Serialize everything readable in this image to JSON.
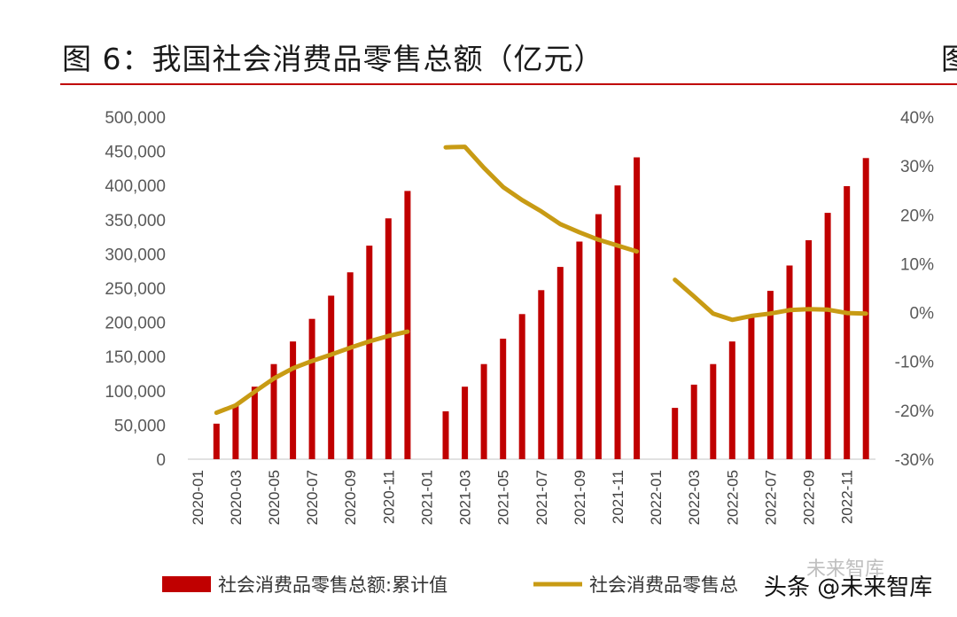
{
  "title": "图 6：我国社会消费品零售总额（亿元）",
  "title_next_figure": "图",
  "watermark": "头条 @未来智库",
  "watermark_faint": "未来智库",
  "colors": {
    "bar": "#c00000",
    "line": "#c89b14",
    "axis": "#d9d9d9",
    "title_rule": "#c00000"
  },
  "chart_data": {
    "type": "bar",
    "x": [
      "2020-01",
      "2020-02",
      "2020-03",
      "2020-04",
      "2020-05",
      "2020-06",
      "2020-07",
      "2020-08",
      "2020-09",
      "2020-10",
      "2020-11",
      "2020-12",
      "2021-01",
      "2021-02",
      "2021-03",
      "2021-04",
      "2021-05",
      "2021-06",
      "2021-07",
      "2021-08",
      "2021-09",
      "2021-10",
      "2021-11",
      "2021-12",
      "2022-01",
      "2022-02",
      "2022-03",
      "2022-04",
      "2022-05",
      "2022-06",
      "2022-07",
      "2022-08",
      "2022-09",
      "2022-10",
      "2022-11",
      "2022-12"
    ],
    "x_tick_labels": [
      "2020-01",
      "2020-03",
      "2020-05",
      "2020-07",
      "2020-09",
      "2020-11",
      "2021-01",
      "2021-03",
      "2021-05",
      "2021-07",
      "2021-09",
      "2021-11",
      "2022-01",
      "2022-03",
      "2022-05",
      "2022-07",
      "2022-09",
      "2022-11"
    ],
    "y_left": {
      "ylim": [
        0,
        500000
      ],
      "ticks": [
        "500,000",
        "450,000",
        "400,000",
        "350,000",
        "300,000",
        "250,000",
        "200,000",
        "150,000",
        "100,000",
        "50,000",
        "0"
      ]
    },
    "y_right": {
      "ylim": [
        -30,
        40
      ],
      "ticks": [
        "40%",
        "30%",
        "20%",
        "10%",
        "0%",
        "-10%",
        "-20%",
        "-30%"
      ]
    },
    "series": [
      {
        "name": "社会消费品零售总额:累计值",
        "type": "bar",
        "axis": "left",
        "values": [
          null,
          52000,
          78000,
          106000,
          139000,
          172000,
          205000,
          239000,
          273000,
          312000,
          352000,
          392000,
          null,
          70000,
          106000,
          139000,
          176000,
          212000,
          247000,
          281000,
          318000,
          358000,
          400000,
          441000,
          null,
          75000,
          109000,
          139000,
          172000,
          210000,
          246000,
          283000,
          320000,
          360000,
          399000,
          440000
        ]
      },
      {
        "name": "社会消费品零售总额:累计同比",
        "type": "line",
        "axis": "right",
        "values": [
          null,
          -20.5,
          -19.0,
          -16.2,
          -13.5,
          -11.4,
          -9.9,
          -8.6,
          -7.2,
          -5.9,
          -4.8,
          -3.9,
          null,
          33.8,
          33.9,
          29.6,
          25.7,
          23.0,
          20.7,
          18.1,
          16.4,
          14.9,
          13.7,
          12.5,
          null,
          6.7,
          3.3,
          -0.2,
          -1.5,
          -0.7,
          -0.2,
          0.5,
          0.7,
          0.6,
          -0.1,
          -0.2
        ]
      }
    ],
    "legend": {
      "placement": "bottom",
      "labels": [
        "社会消费品零售总额:累计值",
        "社会消费品零售总"
      ]
    }
  }
}
